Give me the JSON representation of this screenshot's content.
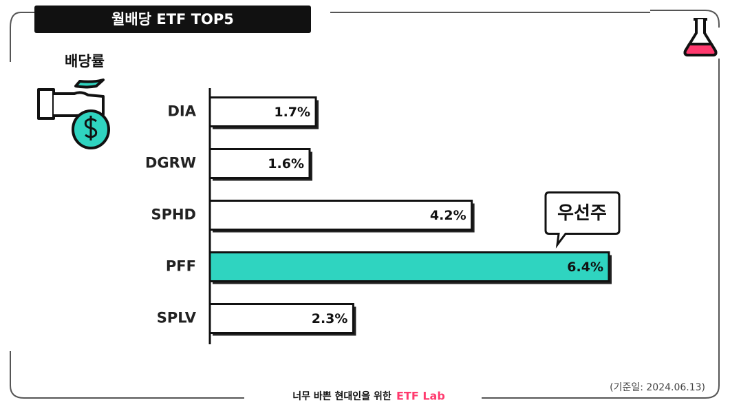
{
  "chart_data": {
    "type": "hbar",
    "title": "월배당 ETF TOP5",
    "xlabel": "배당률",
    "categories": [
      "DIA",
      "DGRW",
      "SPHD",
      "PFF",
      "SPLV"
    ],
    "values": [
      1.7,
      1.6,
      4.2,
      6.4,
      2.3
    ],
    "value_labels": [
      "1.7%",
      "1.6%",
      "4.2%",
      "6.4%",
      "2.3%"
    ],
    "colors": [
      "#ffffff",
      "#ffffff",
      "#ffffff",
      "#2fd4c0",
      "#ffffff"
    ],
    "xlim": [
      0,
      8
    ],
    "annotations": [
      {
        "text": "우선주",
        "category": "PFF"
      }
    ],
    "footer": {
      "text": "너무 바쁜 현대인을 위한",
      "brand": "ETF Lab",
      "brand_color": "#ff3a6e"
    },
    "note": "(기준일: 2024.06.13)"
  }
}
